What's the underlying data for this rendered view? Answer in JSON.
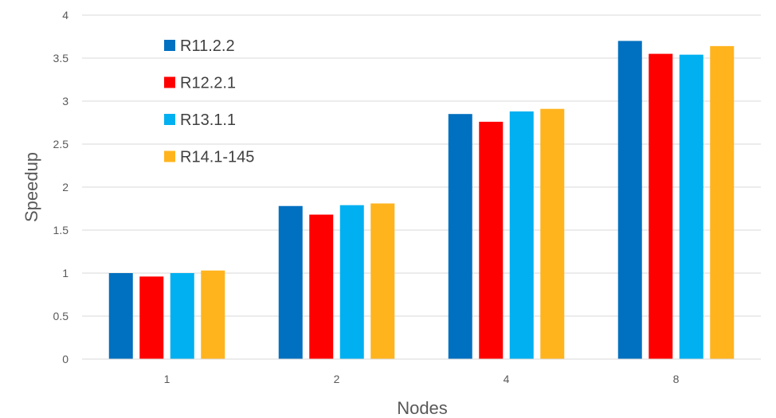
{
  "chart_data": {
    "type": "bar",
    "title": "",
    "xlabel": "Nodes",
    "ylabel": "Speedup",
    "categories": [
      "1",
      "2",
      "4",
      "8"
    ],
    "ylim": [
      0,
      4
    ],
    "yticks": [
      "0",
      "0.5",
      "1",
      "1.5",
      "2",
      "2.5",
      "3",
      "3.5",
      "4"
    ],
    "grid": true,
    "legend_position": "top-left",
    "series": [
      {
        "name": "R11.2.2",
        "color": "#0070C0",
        "values": [
          1.0,
          1.78,
          2.85,
          3.7
        ]
      },
      {
        "name": "R12.2.1",
        "color": "#FF0000",
        "values": [
          0.96,
          1.68,
          2.76,
          3.55
        ]
      },
      {
        "name": "R13.1.1",
        "color": "#00B0F0",
        "values": [
          1.0,
          1.79,
          2.88,
          3.54
        ]
      },
      {
        "name": "R14.1-145",
        "color": "#FFB41E",
        "values": [
          1.03,
          1.81,
          2.91,
          3.64
        ]
      }
    ]
  }
}
